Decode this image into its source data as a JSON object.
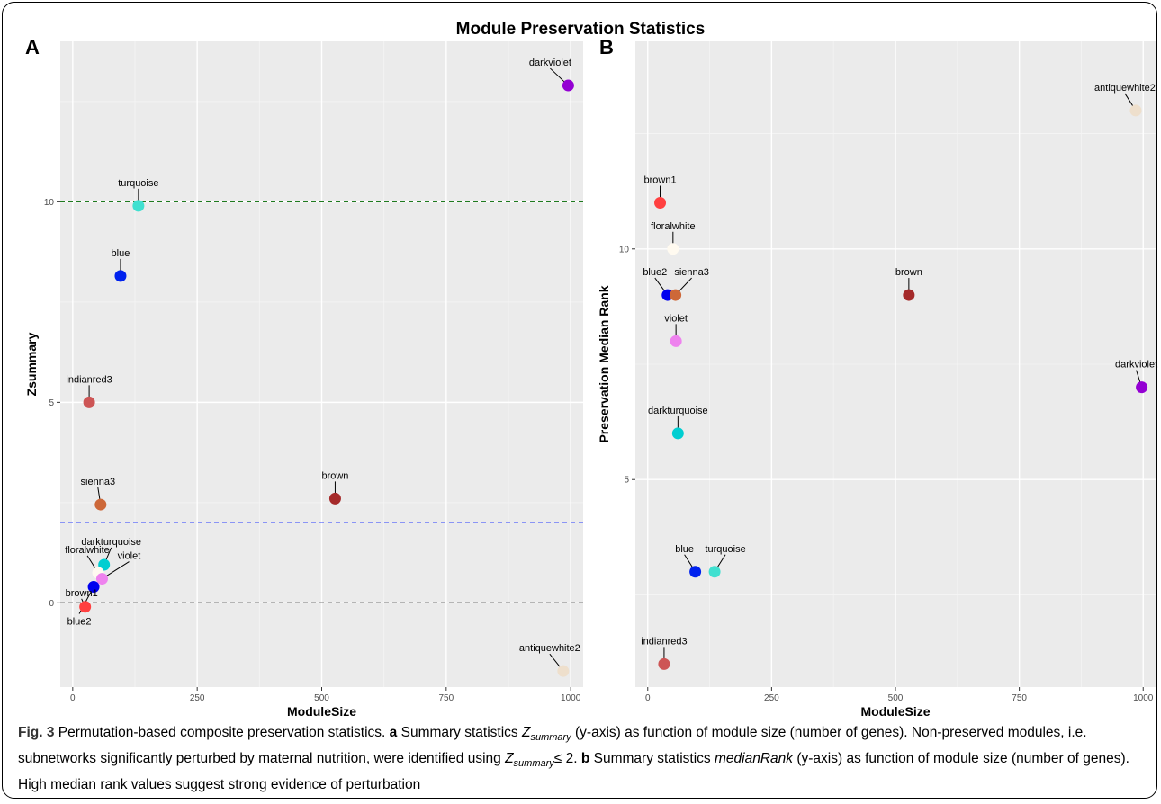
{
  "figure": {
    "title": "Module Preservation Statistics",
    "panel_a_letter": "A",
    "panel_b_letter": "B"
  },
  "caption": {
    "label": "Fig. 3",
    "intro": "Permutation-based composite preservation statistics.",
    "a_letter": "a",
    "a_text_1": "Summary statistics",
    "z_main": "Z",
    "z_sub": "summary",
    "a_text_2": "(y-axis) as function of module size (number of genes). Non-preserved modules, i.e. subnetworks significantly perturbed by maternal nutrition, were identified using",
    "a_text_3": "≤ 2.",
    "b_letter": "b",
    "b_text_1": "Summary statistics",
    "b_median": "medianRank",
    "b_text_2": "(y-axis) as function of module size (number of genes). High median rank values suggest strong evidence of perturbation"
  },
  "chart_data": [
    {
      "type": "scatter",
      "panel": "A",
      "title": "",
      "xlabel": "ModuleSize",
      "ylabel": "Zsummary",
      "xlim": [
        -25,
        1025
      ],
      "ylim": [
        -2.1,
        14.0
      ],
      "xticks": [
        0,
        250,
        500,
        750,
        1000
      ],
      "yticks": [
        0,
        5,
        10
      ],
      "grid": true,
      "reference_lines": [
        {
          "y": 10,
          "color": "#1f7a1f"
        },
        {
          "y": 2,
          "color": "#2a3cff"
        },
        {
          "y": 0,
          "color": "#000000"
        }
      ],
      "points": [
        {
          "label": "darkviolet",
          "x": 995,
          "y": 12.9,
          "color": "#9400D3",
          "label_dx": -20,
          "label_dy": -22
        },
        {
          "label": "turquoise",
          "x": 132,
          "y": 9.9,
          "color": "#40E0D0",
          "label_dx": 0,
          "label_dy": -22
        },
        {
          "label": "blue",
          "x": 96,
          "y": 8.15,
          "color": "#0022ee",
          "label_dx": 0,
          "label_dy": -22
        },
        {
          "label": "indianred3",
          "x": 33,
          "y": 5.0,
          "color": "#CD5555",
          "label_dx": 0,
          "label_dy": -22
        },
        {
          "label": "sienna3",
          "x": 56,
          "y": 2.45,
          "color": "#CD6839",
          "label_dx": -3,
          "label_dy": -22
        },
        {
          "label": "brown",
          "x": 527,
          "y": 2.6,
          "color": "#A52A2A",
          "label_dx": 0,
          "label_dy": -22
        },
        {
          "label": "darkturquoise",
          "x": 63,
          "y": 0.95,
          "color": "#00CED1",
          "label_dx": 8,
          "label_dy": -22
        },
        {
          "label": "floralwhite",
          "x": 51,
          "y": 0.75,
          "color": "#FFFAF0",
          "label_dx": -12,
          "label_dy": -22
        },
        {
          "label": "violet",
          "x": 59,
          "y": 0.6,
          "color": "#EE82EE",
          "label_dx": 30,
          "label_dy": 0
        },
        {
          "label": "blue2",
          "x": 42,
          "y": 0.4,
          "color": "#0000EE",
          "label_dx": -16,
          "label_dy": 42
        },
        {
          "label": "brown1",
          "x": 25,
          "y": -0.1,
          "color": "#FF4040",
          "label_dx": -4,
          "label_dy": -12
        },
        {
          "label": "antiquewhite2",
          "x": 985,
          "y": -1.7,
          "color": "#EEDFCC",
          "label_dx": -15,
          "label_dy": -22
        }
      ]
    },
    {
      "type": "scatter",
      "panel": "B",
      "title": "",
      "xlabel": "ModuleSize",
      "ylabel": "Preservation Median Rank",
      "xlim": [
        -25,
        1025
      ],
      "ylim": [
        0.5,
        14.5
      ],
      "xticks": [
        0,
        250,
        500,
        750,
        1000
      ],
      "yticks": [
        5,
        10
      ],
      "grid": true,
      "points": [
        {
          "label": "antiquewhite2",
          "x": 985,
          "y": 13.0,
          "color": "#EEDFCC",
          "label_dx": -12,
          "label_dy": -22
        },
        {
          "label": "brown1",
          "x": 25,
          "y": 11.0,
          "color": "#FF4040",
          "label_dx": 0,
          "label_dy": -22
        },
        {
          "label": "floralwhite",
          "x": 51,
          "y": 10.0,
          "color": "#FFFAF0",
          "label_dx": 0,
          "label_dy": -22
        },
        {
          "label": "blue2",
          "x": 40,
          "y": 9.0,
          "color": "#0000EE",
          "label_dx": -14,
          "label_dy": -22
        },
        {
          "label": "sienna3",
          "x": 56,
          "y": 9.0,
          "color": "#CD6839",
          "label_dx": 18,
          "label_dy": -22
        },
        {
          "label": "brown",
          "x": 527,
          "y": 9.0,
          "color": "#A52A2A",
          "label_dx": 0,
          "label_dy": -22
        },
        {
          "label": "violet",
          "x": 57,
          "y": 8.0,
          "color": "#EE82EE",
          "label_dx": 0,
          "label_dy": -22
        },
        {
          "label": "darkviolet",
          "x": 997,
          "y": 7.0,
          "color": "#9400D3",
          "label_dx": -6,
          "label_dy": -22
        },
        {
          "label": "darkturquoise",
          "x": 61,
          "y": 6.0,
          "color": "#00CED1",
          "label_dx": 0,
          "label_dy": -22
        },
        {
          "label": "blue",
          "x": 96,
          "y": 3.0,
          "color": "#0022ee",
          "label_dx": -12,
          "label_dy": -22
        },
        {
          "label": "turquoise",
          "x": 135,
          "y": 3.0,
          "color": "#40E0D0",
          "label_dx": 12,
          "label_dy": -22
        },
        {
          "label": "indianred3",
          "x": 33,
          "y": 1.0,
          "color": "#CD5555",
          "label_dx": 0,
          "label_dy": -22
        }
      ]
    }
  ]
}
